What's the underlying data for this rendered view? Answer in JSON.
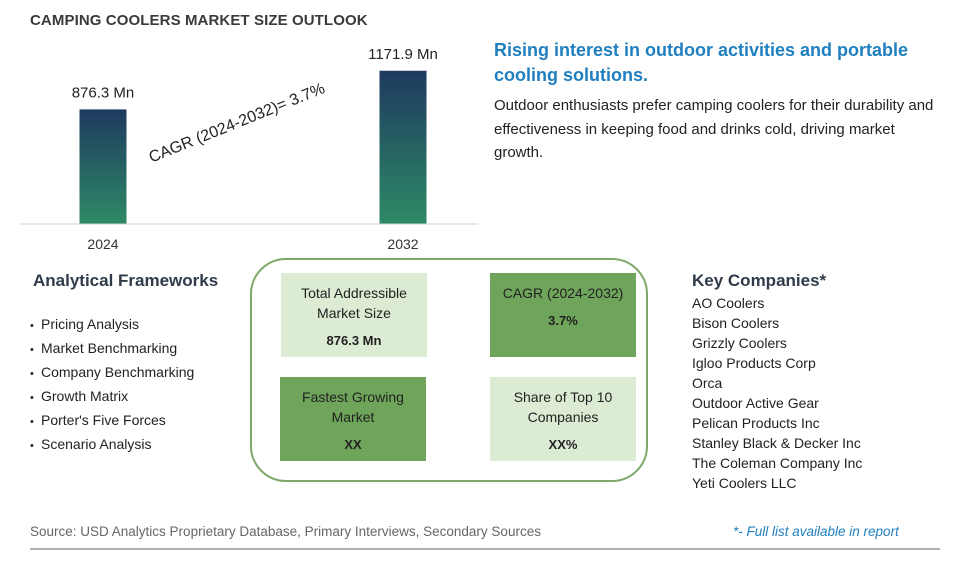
{
  "page_title": "CAMPING COOLERS MARKET SIZE OUTLOOK",
  "chart_data": {
    "type": "bar",
    "categories": [
      "2024",
      "2032"
    ],
    "values": [
      876.3,
      1171.9
    ],
    "data_labels": [
      "876.3 Mn",
      "1171.9 Mn"
    ],
    "annotation": "CAGR (2024-2032)=  3.7%",
    "colors": {
      "bar_top": "#1e3a5f",
      "bar_bottom": "#2e8a66"
    },
    "grid": false,
    "ylim": [
      0,
      1300
    ]
  },
  "headline": "Rising interest in outdoor activities and portable cooling solutions.",
  "description": "Outdoor enthusiasts prefer camping coolers for their durability and effectiveness in keeping food and drinks cold, driving market growth.",
  "frameworks": {
    "title": "Analytical Frameworks",
    "items": [
      "Pricing Analysis",
      "Market Benchmarking",
      "Company Benchmarking",
      "Growth Matrix",
      "Porter's Five Forces",
      "Scenario Analysis"
    ]
  },
  "kpis": {
    "tam": {
      "label": "Total Addressible Market Size",
      "value": "876.3 Mn"
    },
    "cagr": {
      "label": "CAGR (2024-2032)",
      "value": "3.7%"
    },
    "fastest": {
      "label": "Fastest Growing Market",
      "value": "XX"
    },
    "share": {
      "label": "Share of Top 10 Companies",
      "value": "XX%"
    }
  },
  "companies": {
    "title": "Key Companies*",
    "items": [
      "AO Coolers",
      "Bison Coolers",
      "Grizzly Coolers",
      "Igloo Products Corp",
      "Orca",
      "Outdoor Active Gear",
      "Pelican Products Inc",
      "Stanley Black & Decker Inc",
      "The Coleman Company Inc",
      "Yeti Coolers LLC"
    ]
  },
  "source": "Source: USD Analytics Proprietary Database, Primary Interviews, Secondary Sources",
  "footnote": "*- Full list available in report",
  "colors": {
    "accent_blue": "#1f7fbf",
    "kpi_dark": "#6fa55a",
    "kpi_light": "#dcebd3",
    "frame_green": "#7fa96a"
  }
}
